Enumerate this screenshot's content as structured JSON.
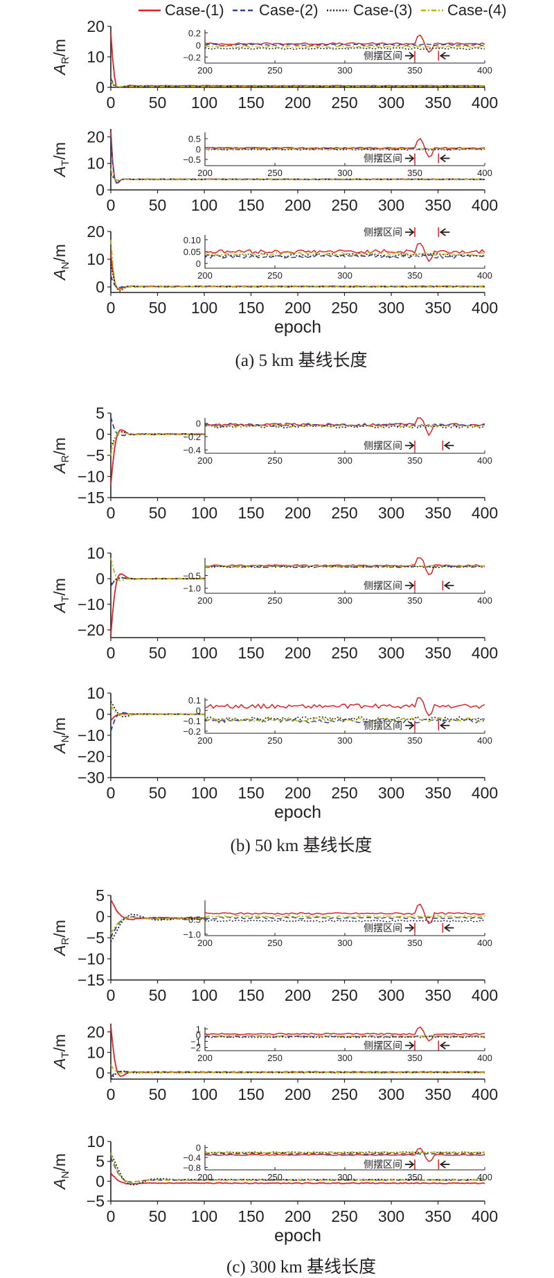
{
  "legend": {
    "items": [
      {
        "label": "Case-(1)",
        "color": "#e02127",
        "dash": "solid"
      },
      {
        "label": "Case-(2)",
        "color": "#2b45a0",
        "dash": "dashed"
      },
      {
        "label": "Case-(3)",
        "color": "#231f20",
        "dash": "dotted"
      },
      {
        "label": "Case-(4)",
        "color": "#b9b40f",
        "dash": "dashdot"
      }
    ]
  },
  "xlabel": "epoch",
  "inset_annotation": "侧摆区间",
  "captions": {
    "a": "(a) 5 km 基线长度",
    "b": "(b) 50 km 基线长度",
    "c": "(c) 300 km 基线长度"
  },
  "chart_data": [
    {
      "type": "line",
      "group": "a",
      "ylabel_main": "A",
      "ylabel_sub": "R",
      "ylabel_unit": "/m",
      "xlim": [
        0,
        400
      ],
      "xticks": [
        0,
        50,
        100,
        150,
        200,
        250,
        300,
        350,
        400
      ],
      "ylim": [
        0,
        20
      ],
      "yticks": [
        0,
        10,
        20
      ],
      "profile": {
        "peak": [
          18,
          3,
          1.5,
          2
        ],
        "decay": 4,
        "settle": [
          0.5,
          0.3,
          0.2,
          0.3
        ]
      },
      "inset": {
        "xlim": [
          200,
          400
        ],
        "ylim": [
          -0.3,
          0.25
        ],
        "yticks": [
          0.2,
          0,
          -0.2
        ],
        "ytick_labels": [
          "0.2",
          "0",
          "−0.2"
        ],
        "levels": [
          0.02,
          0.0,
          -0.06,
          -0.03
        ],
        "noise": 0.015,
        "lateral_window": [
          350,
          367
        ],
        "label_pos": "below"
      }
    },
    {
      "type": "line",
      "group": "a",
      "ylabel_main": "A",
      "ylabel_sub": "T",
      "ylabel_unit": "/m",
      "xlim": [
        0,
        400
      ],
      "xticks": [
        0,
        50,
        100,
        150,
        200,
        250,
        300,
        350,
        400
      ],
      "ylim": [
        0,
        23
      ],
      "yticks": [
        0,
        10,
        20
      ],
      "profile": {
        "peak": [
          22,
          20,
          6,
          8
        ],
        "decay": 3,
        "settle": [
          4,
          4,
          4,
          4
        ]
      },
      "inset": {
        "xlim": [
          200,
          400
        ],
        "ylim": [
          -0.8,
          0.8
        ],
        "yticks": [
          0.5,
          0,
          -0.5
        ],
        "ytick_labels": [
          "0.5",
          "0",
          "−0.5"
        ],
        "levels": [
          0.05,
          0.0,
          -0.02,
          0.0
        ],
        "noise": 0.03,
        "lateral_window": [
          350,
          367
        ],
        "label_pos": "below"
      }
    },
    {
      "type": "line",
      "group": "a",
      "ylabel_main": "A",
      "ylabel_sub": "N",
      "ylabel_unit": "/m",
      "xlim": [
        0,
        400
      ],
      "xticks": [
        0,
        50,
        100,
        150,
        200,
        250,
        300,
        350,
        400
      ],
      "ylim": [
        -2,
        20
      ],
      "yticks": [
        0,
        10,
        20
      ],
      "profile": {
        "peak": [
          12,
          4,
          8,
          17
        ],
        "decay": 4,
        "settle": [
          0.2,
          0.1,
          0.1,
          0.1
        ]
      },
      "inset": {
        "xlim": [
          200,
          400
        ],
        "ylim": [
          -0.02,
          0.12
        ],
        "yticks": [
          0.1,
          0.05,
          0
        ],
        "ytick_labels": [
          "0.10",
          "0.05",
          "0"
        ],
        "levels": [
          0.05,
          0.03,
          0.035,
          0.04
        ],
        "noise": 0.008,
        "lateral_window": [
          350,
          367
        ],
        "label_pos": "above"
      }
    },
    {
      "type": "line",
      "group": "b",
      "ylabel_main": "A",
      "ylabel_sub": "R",
      "ylabel_unit": "/m",
      "xlim": [
        0,
        400
      ],
      "xticks": [
        0,
        50,
        100,
        150,
        200,
        250,
        300,
        350,
        400
      ],
      "ylim": [
        -15,
        5
      ],
      "yticks": [
        5,
        0,
        -5,
        -10,
        -15
      ],
      "profile": {
        "peak": [
          -12,
          4,
          -3,
          -5
        ],
        "decay": 5,
        "settle": [
          0,
          0,
          0,
          0
        ]
      },
      "inset": {
        "xlim": [
          200,
          400
        ],
        "ylim": [
          -0.45,
          0.08
        ],
        "yticks": [
          0,
          -0.2,
          -0.4
        ],
        "ytick_labels": [
          "0",
          "−0.2",
          "−0.4"
        ],
        "levels": [
          -0.02,
          -0.03,
          -0.05,
          -0.04
        ],
        "noise": 0.02,
        "lateral_window": [
          350,
          370
        ],
        "label_pos": "below"
      }
    },
    {
      "type": "line",
      "group": "b",
      "ylabel_main": "A",
      "ylabel_sub": "T",
      "ylabel_unit": "/m",
      "xlim": [
        0,
        400
      ],
      "xticks": [
        0,
        50,
        100,
        150,
        200,
        250,
        300,
        350,
        400
      ],
      "ylim": [
        -23,
        10
      ],
      "yticks": [
        10,
        0,
        -10,
        -20
      ],
      "profile": {
        "peak": [
          -22,
          -3,
          -2,
          8
        ],
        "decay": 5,
        "settle": [
          0,
          0,
          0,
          0
        ]
      },
      "inset": {
        "xlim": [
          200,
          400
        ],
        "ylim": [
          -1.2,
          0.2
        ],
        "yticks": [
          -0.5,
          -1.0
        ],
        "ytick_labels": [
          "−0.5",
          "−1.0"
        ],
        "levels": [
          -0.1,
          -0.15,
          -0.15,
          -0.12
        ],
        "noise": 0.03,
        "lateral_window": [
          350,
          370
        ],
        "label_pos": "below"
      }
    },
    {
      "type": "line",
      "group": "b",
      "ylabel_main": "A",
      "ylabel_sub": "N",
      "ylabel_unit": "/m",
      "xlim": [
        0,
        400
      ],
      "xticks": [
        0,
        50,
        100,
        150,
        200,
        250,
        300,
        350,
        400
      ],
      "ylim": [
        -30,
        10
      ],
      "yticks": [
        10,
        0,
        -10,
        -20,
        -30
      ],
      "profile": {
        "peak": [
          -3,
          -8,
          6,
          4
        ],
        "decay": 6,
        "settle": [
          0,
          0,
          0,
          0
        ]
      },
      "inset": {
        "xlim": [
          200,
          400
        ],
        "ylim": [
          -0.22,
          0.12
        ],
        "yticks": [
          0.1,
          0,
          -0.1,
          -0.2
        ],
        "ytick_labels": [
          "0.1",
          "0",
          "−0.1",
          "−0.2"
        ],
        "levels": [
          0.04,
          -0.1,
          -0.08,
          -0.09
        ],
        "noise": 0.02,
        "lateral_window": [
          350,
          367
        ],
        "label_pos": "below"
      }
    },
    {
      "type": "line",
      "group": "c",
      "ylabel_main": "A",
      "ylabel_sub": "R",
      "ylabel_unit": "/m",
      "xlim": [
        0,
        400
      ],
      "xticks": [
        0,
        50,
        100,
        150,
        200,
        250,
        300,
        350,
        400
      ],
      "ylim": [
        -15,
        5
      ],
      "yticks": [
        5,
        0,
        -5,
        -10,
        -15
      ],
      "profile": {
        "peak": [
          4,
          -5,
          -6,
          -4
        ],
        "decay": 10,
        "settle": [
          -0.3,
          -0.5,
          -0.6,
          -0.5
        ]
      },
      "inset": {
        "xlim": [
          200,
          400
        ],
        "ylim": [
          -1.05,
          0.15
        ],
        "yticks": [
          -0.5,
          -1.0
        ],
        "ytick_labels": [
          "−0.5",
          "−1.0"
        ],
        "levels": [
          -0.3,
          -0.45,
          -0.55,
          -0.4
        ],
        "noise": 0.03,
        "lateral_window": [
          350,
          370
        ],
        "label_pos": "below"
      }
    },
    {
      "type": "line",
      "group": "c",
      "ylabel_main": "A",
      "ylabel_sub": "T",
      "ylabel_unit": "/m",
      "xlim": [
        0,
        400
      ],
      "xticks": [
        0,
        50,
        100,
        150,
        200,
        250,
        300,
        350,
        400
      ],
      "ylim": [
        -3,
        24
      ],
      "yticks": [
        0,
        10,
        20
      ],
      "profile": {
        "peak": [
          23,
          -2,
          -3,
          4
        ],
        "decay": 5,
        "settle": [
          0.3,
          0.5,
          0.2,
          0.3
        ]
      },
      "inset": {
        "xlim": [
          200,
          400
        ],
        "ylim": [
          -2.5,
          1.3
        ],
        "yticks": [
          1,
          0,
          -1,
          -2
        ],
        "ytick_labels": [
          "1",
          "0",
          "−1",
          "−2"
        ],
        "levels": [
          0.2,
          -0.2,
          -0.3,
          -0.1
        ],
        "noise": 0.1,
        "lateral_window": [
          350,
          367
        ],
        "label_pos": "below"
      }
    },
    {
      "type": "line",
      "group": "c",
      "ylabel_main": "A",
      "ylabel_sub": "N",
      "ylabel_unit": "/m",
      "xlim": [
        0,
        400
      ],
      "xticks": [
        0,
        50,
        100,
        150,
        200,
        250,
        300,
        350,
        400
      ],
      "ylim": [
        -5,
        10
      ],
      "yticks": [
        10,
        5,
        0,
        -5
      ],
      "profile": {
        "peak": [
          2,
          6,
          7,
          7
        ],
        "decay": 10,
        "settle": [
          -0.5,
          0.3,
          0.4,
          0.3
        ]
      },
      "inset": {
        "xlim": [
          200,
          400
        ],
        "ylim": [
          -0.9,
          0.1
        ],
        "yticks": [
          0,
          -0.4,
          -0.8
        ],
        "ytick_labels": [
          "0",
          "−0.4",
          "−0.8"
        ],
        "levels": [
          -0.3,
          -0.25,
          -0.2,
          -0.2
        ],
        "noise": 0.02,
        "lateral_window": [
          350,
          367
        ],
        "label_pos": "below"
      }
    }
  ]
}
